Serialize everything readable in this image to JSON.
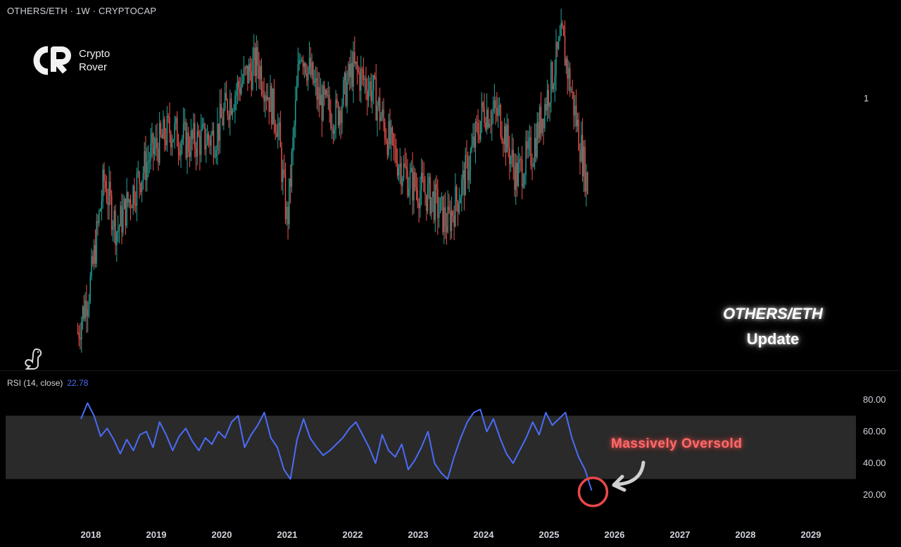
{
  "header": {
    "title": "OTHERS/ETH · 1W · CRYPTOCAP"
  },
  "logo": {
    "line1": "Crypto",
    "line2": "Rover"
  },
  "overlay": {
    "line1": "OTHERS/ETH",
    "line2": "Update"
  },
  "rsi_panel": {
    "label": "RSI (14, close)",
    "value": "22.78"
  },
  "annotation": {
    "text": "Massively Oversold"
  },
  "colors": {
    "up": "#26a69a",
    "down": "#ef5350",
    "rsi": "#4a6cf7",
    "band": "#2a2a2a",
    "annotation": "#e8484a"
  },
  "chart_data": [
    {
      "type": "candlestick",
      "title": "OTHERS/ETH · 1W · CRYPTOCAP",
      "x_labels": [
        "2018",
        "2019",
        "2020",
        "2021",
        "2022",
        "2023",
        "2024",
        "2025",
        "2026",
        "2027",
        "2028",
        "2029"
      ],
      "price_axis_label": "1",
      "series": [
        {
          "name": "OTHERS/ETH",
          "closes_keypoints": [
            {
              "x": 2017.8,
              "y": 0.1
            },
            {
              "x": 2018.0,
              "y": 0.25
            },
            {
              "x": 2018.2,
              "y": 0.55
            },
            {
              "x": 2018.4,
              "y": 0.4
            },
            {
              "x": 2018.6,
              "y": 0.5
            },
            {
              "x": 2018.9,
              "y": 0.62
            },
            {
              "x": 2019.2,
              "y": 0.7
            },
            {
              "x": 2019.5,
              "y": 0.66
            },
            {
              "x": 2019.9,
              "y": 0.68
            },
            {
              "x": 2020.1,
              "y": 0.78
            },
            {
              "x": 2020.3,
              "y": 0.84
            },
            {
              "x": 2020.55,
              "y": 0.9
            },
            {
              "x": 2020.85,
              "y": 0.72
            },
            {
              "x": 2021.0,
              "y": 0.42
            },
            {
              "x": 2021.2,
              "y": 0.95
            },
            {
              "x": 2021.5,
              "y": 0.78
            },
            {
              "x": 2021.75,
              "y": 0.74
            },
            {
              "x": 2022.0,
              "y": 0.88
            },
            {
              "x": 2022.3,
              "y": 0.82
            },
            {
              "x": 2022.6,
              "y": 0.64
            },
            {
              "x": 2022.9,
              "y": 0.54
            },
            {
              "x": 2023.2,
              "y": 0.5
            },
            {
              "x": 2023.45,
              "y": 0.42
            },
            {
              "x": 2023.7,
              "y": 0.55
            },
            {
              "x": 2024.0,
              "y": 0.76
            },
            {
              "x": 2024.25,
              "y": 0.74
            },
            {
              "x": 2024.5,
              "y": 0.56
            },
            {
              "x": 2024.75,
              "y": 0.64
            },
            {
              "x": 2025.0,
              "y": 0.82
            },
            {
              "x": 2025.2,
              "y": 0.97
            },
            {
              "x": 2025.35,
              "y": 0.8
            },
            {
              "x": 2025.6,
              "y": 0.52
            }
          ]
        }
      ]
    },
    {
      "type": "line",
      "title": "RSI (14, close)",
      "x_labels": [
        "2018",
        "2019",
        "2020",
        "2021",
        "2022",
        "2023",
        "2024",
        "2025",
        "2026",
        "2027",
        "2028",
        "2029"
      ],
      "y_ticks": [
        "80.00",
        "60.00",
        "40.00",
        "20.00"
      ],
      "ylim": [
        15,
        85
      ],
      "band": [
        30,
        70
      ],
      "series": [
        {
          "name": "RSI (14, close)",
          "points": [
            {
              "x": 2017.85,
              "y": 68
            },
            {
              "x": 2017.95,
              "y": 78
            },
            {
              "x": 2018.05,
              "y": 70
            },
            {
              "x": 2018.15,
              "y": 57
            },
            {
              "x": 2018.25,
              "y": 62
            },
            {
              "x": 2018.35,
              "y": 55
            },
            {
              "x": 2018.45,
              "y": 46
            },
            {
              "x": 2018.55,
              "y": 55
            },
            {
              "x": 2018.65,
              "y": 48
            },
            {
              "x": 2018.75,
              "y": 58
            },
            {
              "x": 2018.85,
              "y": 60
            },
            {
              "x": 2018.95,
              "y": 50
            },
            {
              "x": 2019.05,
              "y": 66
            },
            {
              "x": 2019.15,
              "y": 58
            },
            {
              "x": 2019.25,
              "y": 48
            },
            {
              "x": 2019.35,
              "y": 57
            },
            {
              "x": 2019.45,
              "y": 62
            },
            {
              "x": 2019.55,
              "y": 54
            },
            {
              "x": 2019.65,
              "y": 48
            },
            {
              "x": 2019.75,
              "y": 56
            },
            {
              "x": 2019.85,
              "y": 52
            },
            {
              "x": 2019.95,
              "y": 60
            },
            {
              "x": 2020.05,
              "y": 56
            },
            {
              "x": 2020.15,
              "y": 66
            },
            {
              "x": 2020.25,
              "y": 70
            },
            {
              "x": 2020.35,
              "y": 50
            },
            {
              "x": 2020.45,
              "y": 58
            },
            {
              "x": 2020.55,
              "y": 64
            },
            {
              "x": 2020.65,
              "y": 72
            },
            {
              "x": 2020.75,
              "y": 56
            },
            {
              "x": 2020.85,
              "y": 50
            },
            {
              "x": 2020.95,
              "y": 36
            },
            {
              "x": 2021.05,
              "y": 30
            },
            {
              "x": 2021.15,
              "y": 55
            },
            {
              "x": 2021.25,
              "y": 68
            },
            {
              "x": 2021.35,
              "y": 56
            },
            {
              "x": 2021.45,
              "y": 50
            },
            {
              "x": 2021.55,
              "y": 45
            },
            {
              "x": 2021.65,
              "y": 48
            },
            {
              "x": 2021.75,
              "y": 52
            },
            {
              "x": 2021.85,
              "y": 56
            },
            {
              "x": 2021.95,
              "y": 62
            },
            {
              "x": 2022.05,
              "y": 66
            },
            {
              "x": 2022.15,
              "y": 58
            },
            {
              "x": 2022.25,
              "y": 50
            },
            {
              "x": 2022.35,
              "y": 40
            },
            {
              "x": 2022.45,
              "y": 58
            },
            {
              "x": 2022.55,
              "y": 48
            },
            {
              "x": 2022.65,
              "y": 44
            },
            {
              "x": 2022.75,
              "y": 52
            },
            {
              "x": 2022.85,
              "y": 36
            },
            {
              "x": 2022.95,
              "y": 42
            },
            {
              "x": 2023.05,
              "y": 50
            },
            {
              "x": 2023.15,
              "y": 60
            },
            {
              "x": 2023.25,
              "y": 40
            },
            {
              "x": 2023.35,
              "y": 34
            },
            {
              "x": 2023.45,
              "y": 30
            },
            {
              "x": 2023.55,
              "y": 44
            },
            {
              "x": 2023.65,
              "y": 56
            },
            {
              "x": 2023.75,
              "y": 66
            },
            {
              "x": 2023.85,
              "y": 72
            },
            {
              "x": 2023.95,
              "y": 74
            },
            {
              "x": 2024.05,
              "y": 60
            },
            {
              "x": 2024.15,
              "y": 68
            },
            {
              "x": 2024.25,
              "y": 56
            },
            {
              "x": 2024.35,
              "y": 46
            },
            {
              "x": 2024.45,
              "y": 40
            },
            {
              "x": 2024.55,
              "y": 48
            },
            {
              "x": 2024.65,
              "y": 56
            },
            {
              "x": 2024.75,
              "y": 66
            },
            {
              "x": 2024.85,
              "y": 58
            },
            {
              "x": 2024.95,
              "y": 72
            },
            {
              "x": 2025.05,
              "y": 64
            },
            {
              "x": 2025.15,
              "y": 68
            },
            {
              "x": 2025.25,
              "y": 72
            },
            {
              "x": 2025.35,
              "y": 56
            },
            {
              "x": 2025.45,
              "y": 44
            },
            {
              "x": 2025.55,
              "y": 36
            },
            {
              "x": 2025.65,
              "y": 22.78
            }
          ]
        }
      ]
    }
  ]
}
